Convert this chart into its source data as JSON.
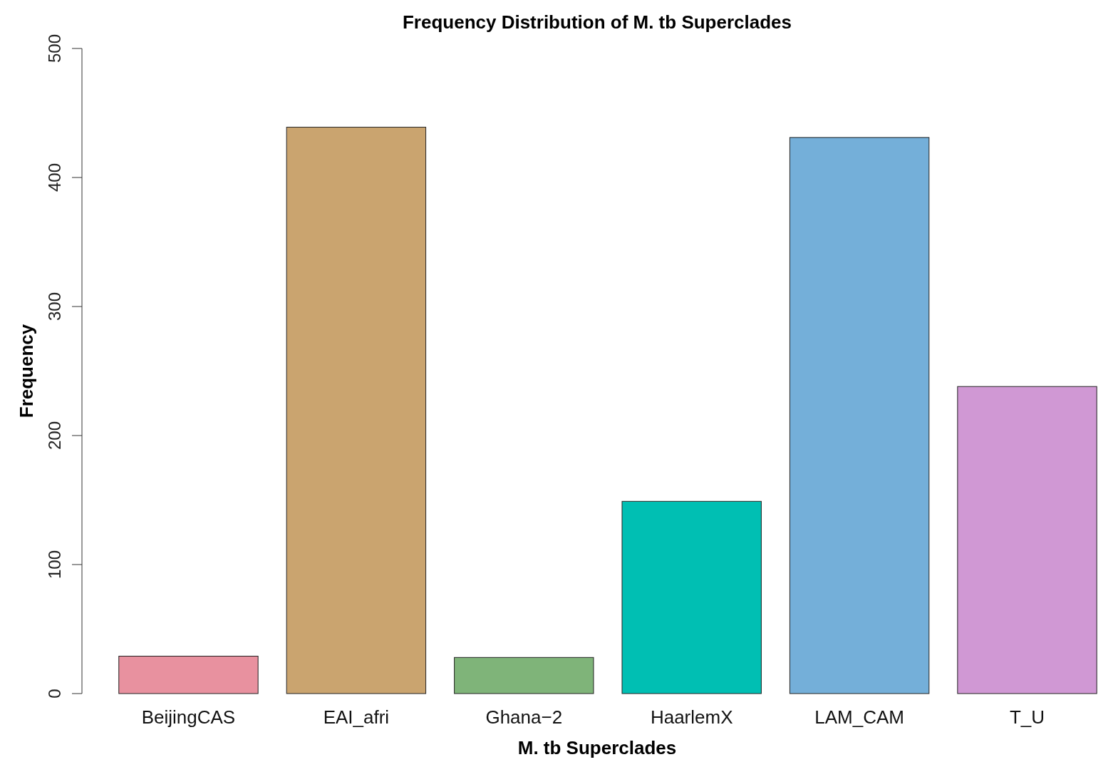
{
  "chart_data": {
    "type": "bar",
    "title": "Frequency Distribution of M. tb Superclades",
    "xlabel": "M. tb Superclades",
    "ylabel": "Frequency",
    "categories": [
      "BeijingCAS",
      "EAI_afri",
      "Ghana−2",
      "HaarlemX",
      "LAM_CAM",
      "T_U"
    ],
    "values": [
      29,
      439,
      28,
      149,
      431,
      238
    ],
    "colors": [
      "#e8919f",
      "#caa46f",
      "#7fb479",
      "#00bfb3",
      "#74afd9",
      "#d098d4"
    ],
    "ylim": [
      0,
      500
    ],
    "yticks": [
      0,
      100,
      200,
      300,
      400,
      500
    ],
    "grid": false
  }
}
